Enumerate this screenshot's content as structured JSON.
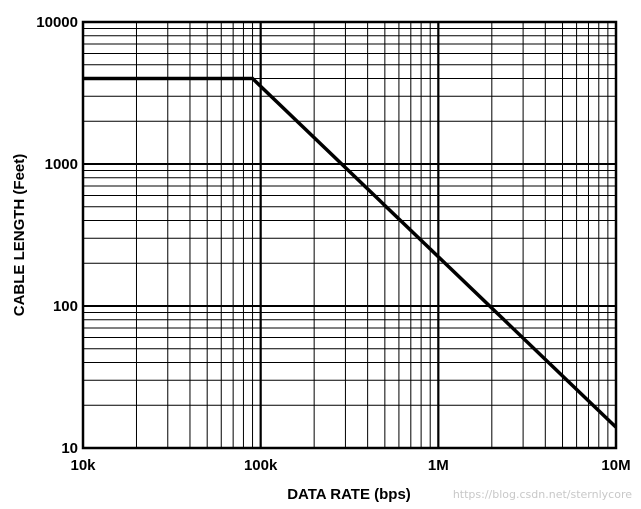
{
  "chart_data": {
    "type": "line",
    "xlabel": "DATA RATE (bps)",
    "ylabel": "CABLE LENGTH (Feet)",
    "x_scale": "log",
    "y_scale": "log",
    "xlim": [
      10000,
      10000000
    ],
    "ylim": [
      10,
      10000
    ],
    "x_ticks": [
      {
        "value": 10000,
        "label": "10k"
      },
      {
        "value": 100000,
        "label": "100k"
      },
      {
        "value": 1000000,
        "label": "1M"
      },
      {
        "value": 10000000,
        "label": "10M"
      }
    ],
    "y_ticks": [
      {
        "value": 10,
        "label": "10"
      },
      {
        "value": 100,
        "label": "100"
      },
      {
        "value": 1000,
        "label": "1000"
      },
      {
        "value": 10000,
        "label": "10000"
      }
    ],
    "grid": true,
    "series": [
      {
        "x": [
          10000,
          90000,
          10000000
        ],
        "y": [
          4000,
          4000,
          14
        ],
        "color": "#000000"
      }
    ]
  },
  "watermark": "https://blog.csdn.net/sternlycore"
}
